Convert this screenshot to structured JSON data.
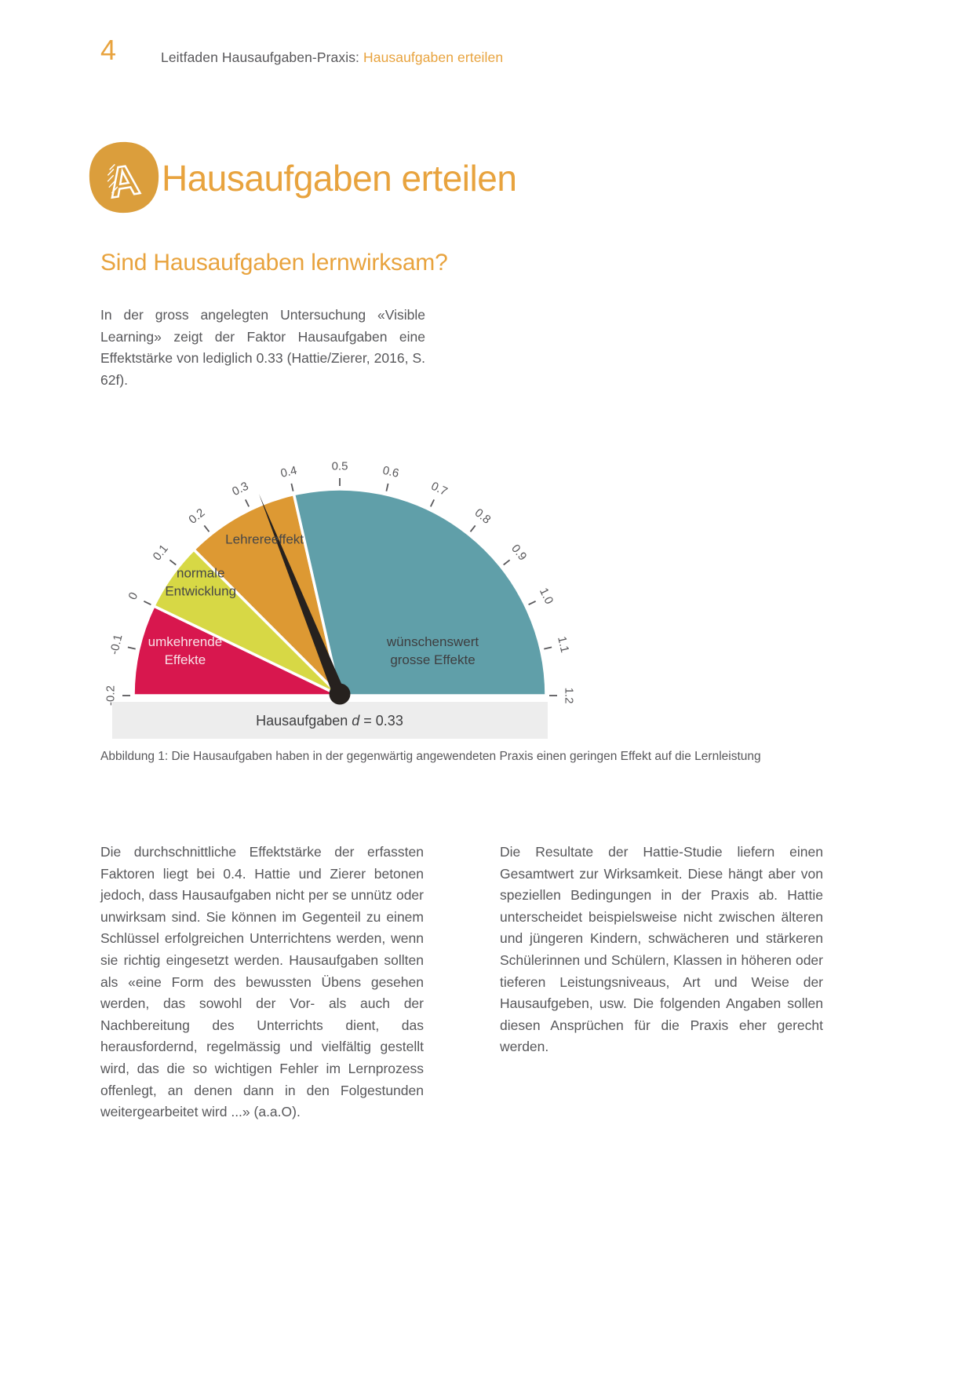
{
  "page": {
    "number": "4",
    "running_title": "Leitfaden Hausaufgaben-Praxis: ",
    "running_highlight": "Hausaufgaben erteilen"
  },
  "chapter": {
    "icon": "doodle-letter-a-icon",
    "title": "Hausaufgaben erteilen"
  },
  "section": {
    "heading": "Sind Hausaufgaben lernwirksam?",
    "intro": "In der gross angelegten Untersuchung «Visible Learning» zeigt der Faktor Hausaufgaben eine Effektstärke von lediglich 0.33 (Hattie/Zierer, 2016, S. 62f)."
  },
  "chart_data": {
    "type": "gauge",
    "min": -0.2,
    "max": 1.2,
    "ticks": [
      {
        "v": -0.2,
        "label": "-0.2"
      },
      {
        "v": -0.1,
        "label": "-0.1"
      },
      {
        "v": 0,
        "label": "0"
      },
      {
        "v": 0.1,
        "label": "0.1"
      },
      {
        "v": 0.2,
        "label": "0.2"
      },
      {
        "v": 0.3,
        "label": "0.3"
      },
      {
        "v": 0.4,
        "label": "0.4"
      },
      {
        "v": 0.5,
        "label": "0.5"
      },
      {
        "v": 0.6,
        "label": "0.6"
      },
      {
        "v": 0.7,
        "label": "0.7"
      },
      {
        "v": 0.8,
        "label": "0.8"
      },
      {
        "v": 0.9,
        "label": "0.9"
      },
      {
        "v": 1.0,
        "label": "1.0"
      },
      {
        "v": 1.1,
        "label": "1.1"
      },
      {
        "v": 1.2,
        "label": "1.2"
      }
    ],
    "segments": [
      {
        "name": "umkehrende-effekte",
        "from": -0.2,
        "to": 0,
        "color": "#D8174E",
        "label_lines": [
          "umkehrende",
          "Effekte"
        ],
        "label_color": "#F8E2E8",
        "label_value": -0.075,
        "label_radius": 0.78
      },
      {
        "name": "normale-entwicklung",
        "from": 0,
        "to": 0.15,
        "color": "#D7D845",
        "label_lines": [
          "normale",
          "Entwicklung"
        ],
        "label_color": "#474747",
        "label_value": 0.105,
        "label_radius": 0.87
      },
      {
        "name": "lehrereffekt",
        "from": 0.15,
        "to": 0.4,
        "color": "#DD9933",
        "label_lines": [
          "Lehrereeffekt"
        ],
        "label_color": "#474747",
        "label_value": 0.3,
        "label_radius": 0.84
      },
      {
        "name": "wuenschenswert",
        "from": 0.4,
        "to": 1.2,
        "color": "#609FA9",
        "label_lines": [
          "wünschenswert",
          "grosse Effekte"
        ],
        "label_color": "#3E3E40",
        "label_value": 1.0,
        "label_radius": 0.5
      }
    ],
    "needle": {
      "value": 0.33,
      "color": "#26211E"
    },
    "band": {
      "text_prefix": "Hausaufgaben",
      "text_var": "d",
      "text_rest": "= 0.33",
      "bg": "#EDEDED",
      "text_color": "#3E3E40"
    },
    "tick_color": "#59585B"
  },
  "figure": {
    "caption": "Abbildung 1: Die Hausaufgaben haben in der gegenwärtig angewendeten Praxis einen geringen Effekt auf die Lernleistung"
  },
  "body": {
    "left": "Die durchschnittliche Effektstärke der erfassten Faktoren liegt bei 0.4. Hattie und Zierer betonen jedoch, dass Hausaufgaben nicht per se unnütz oder unwirksam sind. Sie können im Gegenteil zu einem Schlüssel erfolgreichen Unterrichtens werden, wenn sie richtig eingesetzt werden. Hausaufgaben sollten als «eine Form des bewussten Übens gesehen werden, das sowohl der Vor- als auch der Nachbereitung des Unterrichts dient, das herausfordernd, regelmässig und vielfältig gestellt wird, das die so wichtigen Fehler im Lernprozess offenlegt, an denen dann in den Folgestunden weitergearbeitet wird ...» (a.a.O).",
    "right": "Die Resultate der Hattie-Studie liefern einen Gesamtwert zur Wirksamkeit. Diese hängt aber von speziellen Bedingungen in der Praxis ab. Hattie unterscheidet beispielsweise nicht zwischen älteren und jüngeren Kindern, schwächeren und stärkeren Schülerinnen und Schülern, Klassen in höheren oder tieferen Leistungsniveaus, Art und Weise der Hausaufgeben, usw. Die folgenden Angaben sollen diesen Ansprüchen für die Praxis eher gerecht werden."
  },
  "colors": {
    "accent": "#E8A33E",
    "icon_bg": "#DB9E3C",
    "body_text": "#57575A"
  }
}
